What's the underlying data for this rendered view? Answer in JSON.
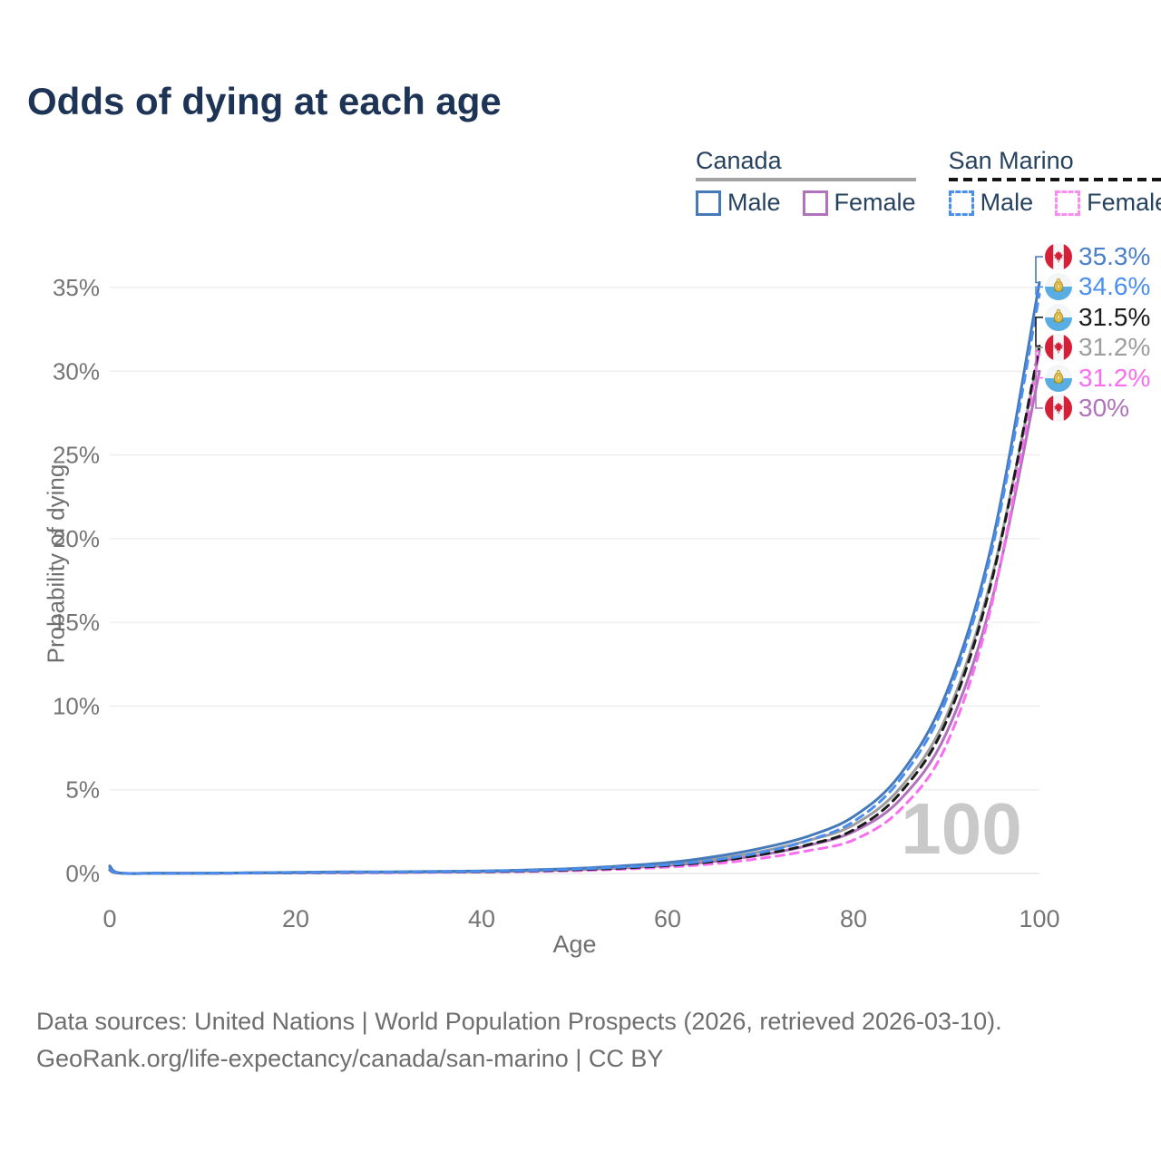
{
  "page": {
    "title": "Odds of dying at each age",
    "watermark_age": "100",
    "footer_line1": "Data sources: United Nations | World Population Prospects (2026, retrieved 2026-03-10).",
    "footer_line2": "GeoRank.org/life-expectancy/canada/san-marino | CC BY"
  },
  "legend": {
    "groups": [
      {
        "name": "Canada",
        "underline_style": "solid",
        "underline_color": "#a3a3a3",
        "items": [
          {
            "label": "Male",
            "color": "#4579b8",
            "dashed": false
          },
          {
            "label": "Female",
            "color": "#b172bc",
            "dashed": false
          }
        ]
      },
      {
        "name": "San Marino",
        "underline_style": "dashed",
        "underline_color": "#141414",
        "items": [
          {
            "label": "Male",
            "color": "#4a8ff0",
            "dashed": true
          },
          {
            "label": "Female",
            "color": "#f98df4",
            "dashed": true
          }
        ]
      }
    ]
  },
  "chart_data": {
    "type": "line",
    "title": "Odds of dying at each age",
    "xlabel": "Age",
    "ylabel": "Probability of dying",
    "x_ticks": [
      0,
      20,
      40,
      60,
      80,
      100
    ],
    "y_ticks_pct": [
      0,
      5,
      10,
      15,
      20,
      25,
      30,
      35
    ],
    "xlim": [
      0,
      100
    ],
    "ylim_pct": [
      0,
      37.5
    ],
    "grid": true,
    "current_age_marker": 100,
    "ages": [
      0,
      1,
      5,
      10,
      15,
      20,
      25,
      30,
      35,
      40,
      45,
      50,
      55,
      60,
      65,
      70,
      75,
      80,
      85,
      90,
      95,
      100
    ],
    "series": [
      {
        "id": "canada-male",
        "name": "Canada Male",
        "country": "Canada",
        "sex": "Male",
        "color": "#4579b8",
        "dashed": false,
        "flag": "canada",
        "end_label": "35.3%",
        "end_label_color": "#4a7fca",
        "values_pct": [
          0.45,
          0.03,
          0.01,
          0.01,
          0.04,
          0.07,
          0.09,
          0.1,
          0.12,
          0.15,
          0.21,
          0.3,
          0.45,
          0.65,
          1.0,
          1.5,
          2.2,
          3.4,
          5.9,
          10.8,
          20.0,
          35.3
        ]
      },
      {
        "id": "san-marino-male",
        "name": "San Marino Male",
        "country": "San Marino",
        "sex": "Male",
        "color": "#4a8ff0",
        "dashed": true,
        "flag": "san-marino",
        "end_label": "34.6%",
        "end_label_color": "#4a8ff0",
        "values_pct": [
          0.25,
          0.02,
          0.01,
          0.01,
          0.03,
          0.05,
          0.07,
          0.08,
          0.1,
          0.13,
          0.18,
          0.26,
          0.38,
          0.52,
          0.8,
          1.25,
          1.95,
          3.1,
          5.6,
          10.4,
          19.6,
          34.6
        ]
      },
      {
        "id": "san-marino-total",
        "name": "San Marino",
        "country": "San Marino",
        "sex": "Both",
        "color": "#1b1b1b",
        "dashed": true,
        "flag": "san-marino",
        "end_label": "31.5%",
        "end_label_color": "#1b1b1b",
        "values_pct": [
          0.22,
          0.02,
          0.01,
          0.01,
          0.03,
          0.04,
          0.06,
          0.07,
          0.09,
          0.11,
          0.15,
          0.22,
          0.32,
          0.47,
          0.72,
          1.12,
          1.7,
          2.6,
          4.8,
          9.1,
          17.8,
          31.5
        ]
      },
      {
        "id": "canada-total",
        "name": "Canada",
        "country": "Canada",
        "sex": "Both",
        "color": "#9d9d9d",
        "dashed": false,
        "flag": "canada",
        "end_label": "31.2%",
        "end_label_color": "#9d9d9d",
        "values_pct": [
          0.4,
          0.03,
          0.01,
          0.01,
          0.03,
          0.05,
          0.07,
          0.08,
          0.1,
          0.13,
          0.18,
          0.26,
          0.38,
          0.55,
          0.85,
          1.3,
          1.95,
          2.9,
          5.1,
          9.4,
          18.0,
          31.2
        ]
      },
      {
        "id": "san-marino-female",
        "name": "San Marino Female",
        "country": "San Marino",
        "sex": "Female",
        "color": "#f96ef1",
        "dashed": true,
        "flag": "san-marino",
        "end_label": "31.2%",
        "end_label_color": "#f96ef1",
        "values_pct": [
          0.2,
          0.02,
          0.01,
          0.01,
          0.02,
          0.03,
          0.04,
          0.05,
          0.07,
          0.09,
          0.12,
          0.17,
          0.25,
          0.38,
          0.58,
          0.9,
          1.35,
          2.0,
          3.8,
          7.7,
          16.4,
          31.2
        ]
      },
      {
        "id": "canada-female",
        "name": "Canada Female",
        "country": "Canada",
        "sex": "Female",
        "color": "#b172bc",
        "dashed": false,
        "flag": "canada",
        "end_label": "30%",
        "end_label_color": "#b172bc",
        "values_pct": [
          0.35,
          0.02,
          0.01,
          0.01,
          0.02,
          0.04,
          0.05,
          0.06,
          0.08,
          0.11,
          0.15,
          0.22,
          0.32,
          0.47,
          0.72,
          1.1,
          1.65,
          2.5,
          4.4,
          8.4,
          16.6,
          30.0
        ]
      }
    ]
  }
}
